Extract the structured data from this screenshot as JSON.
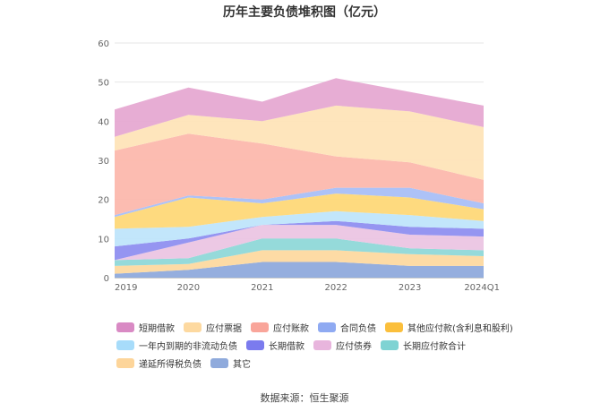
{
  "chart_data": {
    "type": "area",
    "stacked": true,
    "title": "历年主要负债堆积图（亿元）",
    "x": [
      "2019",
      "2020",
      "2021",
      "2022",
      "2023",
      "2024Q1"
    ],
    "ylim": [
      0,
      60
    ],
    "yticks": [
      0,
      10,
      20,
      30,
      40,
      50,
      60
    ],
    "grid": true,
    "legend_position": "bottom",
    "series": [
      {
        "name": "其它",
        "color": "#8faadc",
        "values": [
          1.0,
          2.0,
          4.0,
          4.0,
          3.0,
          3.0
        ]
      },
      {
        "name": "递延所得税负债",
        "color": "#fdd9a0",
        "values": [
          2.0,
          1.5,
          3.0,
          3.0,
          3.0,
          2.5
        ]
      },
      {
        "name": "长期应付款合计",
        "color": "#8fd8d8",
        "values": [
          1.5,
          1.5,
          3.0,
          3.0,
          1.5,
          1.5
        ]
      },
      {
        "name": "应付债券",
        "color": "#ebc5e3",
        "values": [
          0.0,
          4.0,
          3.5,
          3.5,
          3.5,
          3.5
        ]
      },
      {
        "name": "长期借款",
        "color": "#8f8ff0",
        "values": [
          3.5,
          1.0,
          0.0,
          1.0,
          2.0,
          2.0
        ]
      },
      {
        "name": "一年内到期的非流动负债",
        "color": "#bfe5fb",
        "values": [
          4.5,
          3.0,
          2.0,
          2.5,
          3.0,
          2.0
        ]
      },
      {
        "name": "其他应付款(含利息和股利)",
        "color": "#fed878",
        "values": [
          3.0,
          7.5,
          3.5,
          4.5,
          4.5,
          3.0
        ]
      },
      {
        "name": "合同负债",
        "color": "#a9bff7",
        "values": [
          0.5,
          0.5,
          1.0,
          1.5,
          2.5,
          1.5
        ]
      },
      {
        "name": "应付账款",
        "color": "#fcb8ad",
        "values": [
          16.5,
          15.8,
          14.3,
          8.0,
          6.5,
          6.0
        ]
      },
      {
        "name": "应付票据",
        "color": "#fee4b8",
        "values": [
          3.5,
          4.8,
          5.7,
          13.0,
          13.0,
          13.5
        ]
      },
      {
        "name": "短期借款",
        "color": "#e6a9d2",
        "values": [
          7.0,
          7.0,
          5.0,
          7.0,
          5.0,
          5.5
        ]
      }
    ],
    "legend_order": [
      "短期借款",
      "应付票据",
      "应付账款",
      "合同负债",
      "其他应付款(含利息和股利)",
      "一年内到期的非流动负债",
      "长期借款",
      "应付债券",
      "长期应付款合计",
      "递延所得税负债",
      "其它"
    ]
  },
  "legend_colors": {
    "短期借款": "#d98ac4",
    "应付票据": "#fdd9a0",
    "应付账款": "#f9a59a",
    "合同负债": "#8faaf2",
    "其他应付款(含利息和股利)": "#fbbf3c",
    "一年内到期的非流动负债": "#a7dcfa",
    "长期借款": "#7b7bee",
    "应付债券": "#e8b5dd",
    "长期应付款合计": "#7fd3d3",
    "递延所得税负债": "#fdd59a",
    "其它": "#8faadc"
  },
  "source_text": "数据来源：恒生聚源"
}
